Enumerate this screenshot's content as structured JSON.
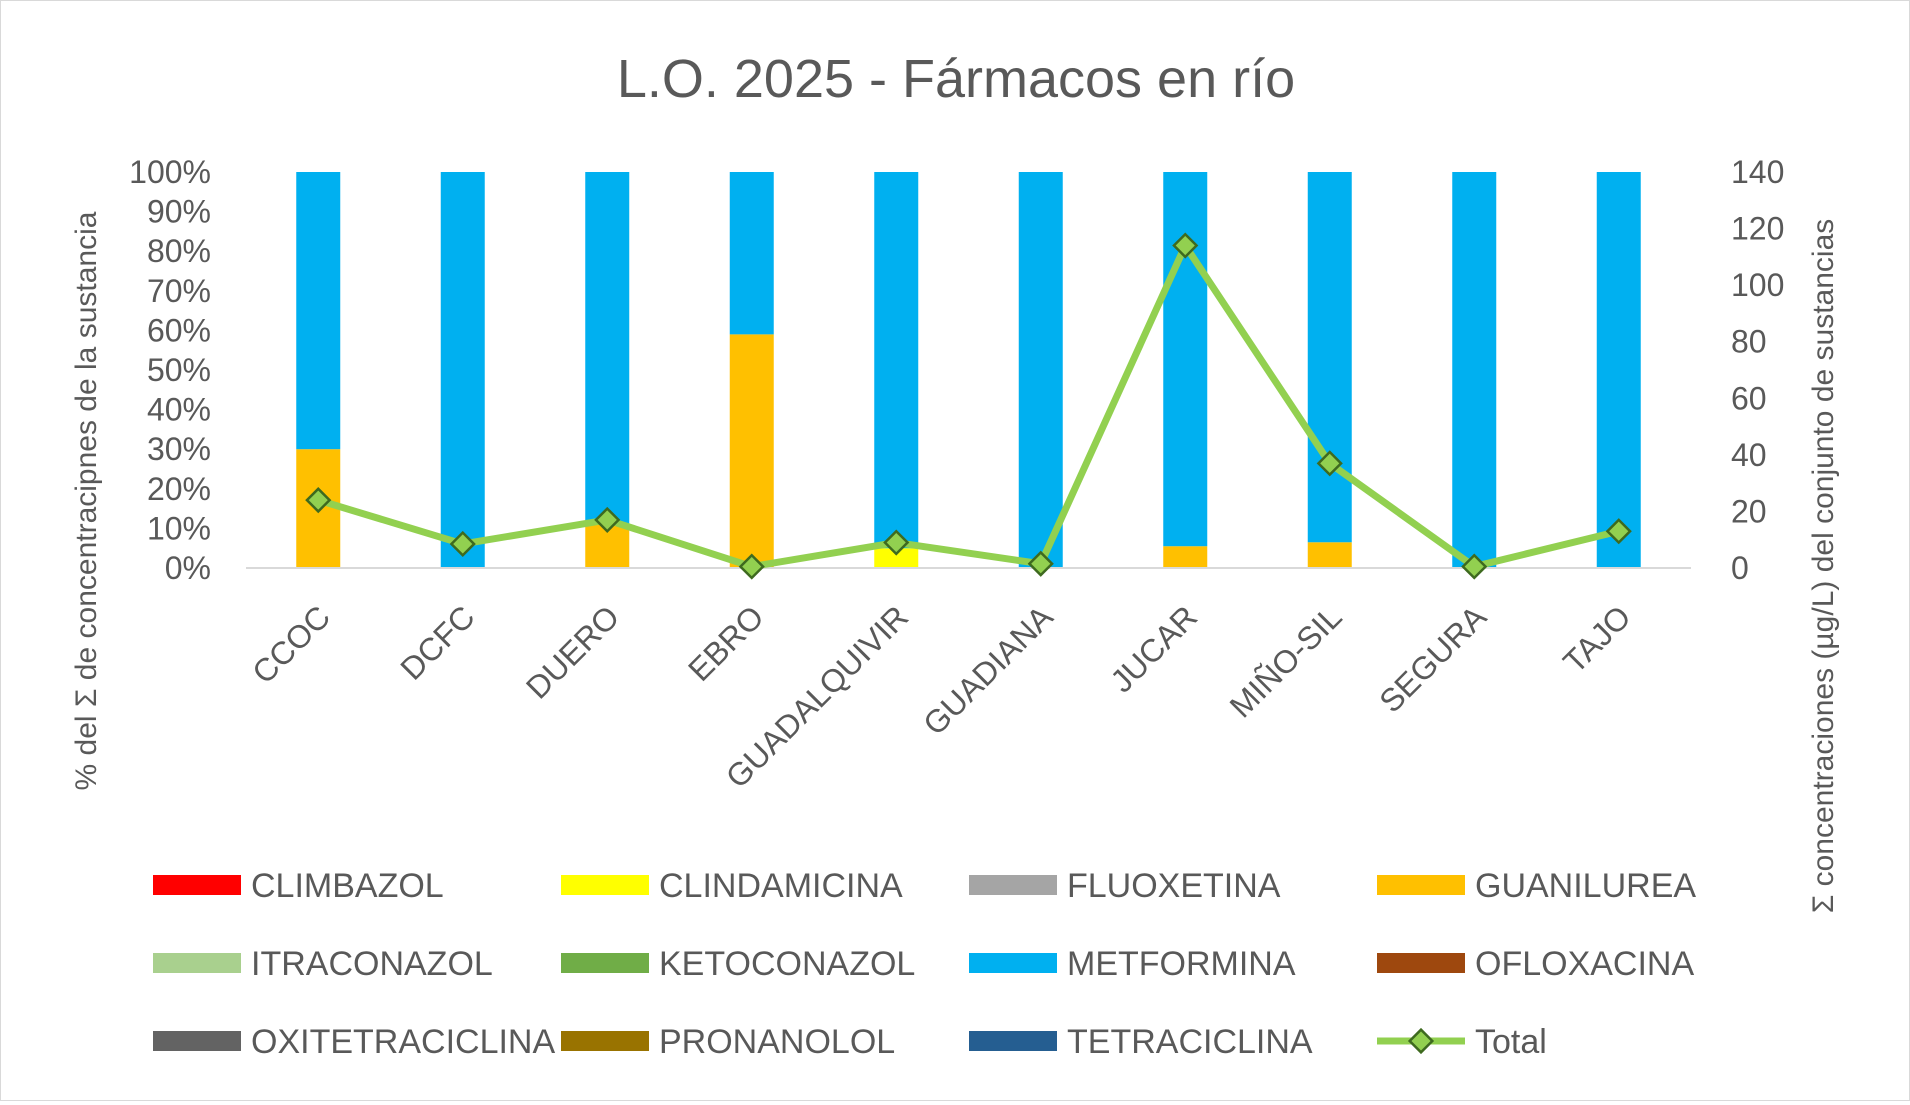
{
  "chart_data": {
    "type": "bar",
    "subtype": "stacked-percent-with-line",
    "title": "L.O. 2025 - Fármacos en río",
    "ylabel": "% del Σ de concentracipnes de la sustancia",
    "y2label": "Σ concentraciones (µg/L) del conjunto de sustancias",
    "ylim": [
      0,
      100
    ],
    "y2lim": [
      0,
      140
    ],
    "yticks": [
      "0%",
      "10%",
      "20%",
      "30%",
      "40%",
      "50%",
      "60%",
      "70%",
      "80%",
      "90%",
      "100%"
    ],
    "y2ticks": [
      "0",
      "20",
      "40",
      "60",
      "80",
      "100",
      "120",
      "140"
    ],
    "categories": [
      "CCOC",
      "DCFC",
      "DUERO",
      "EBRO",
      "GUADALQUIVIR",
      "GUADIANA",
      "JUCAR",
      "MIÑO-SIL",
      "SEGURA",
      "TAJO"
    ],
    "series": [
      {
        "name": "CLIMBAZOL",
        "color": "#FF0000",
        "values": [
          0,
          0,
          0,
          0,
          0,
          0,
          0,
          0,
          0,
          0
        ]
      },
      {
        "name": "CLINDAMICINA",
        "color": "#FFFF00",
        "values": [
          0,
          0,
          0,
          0,
          5,
          0,
          0,
          0,
          0,
          0
        ]
      },
      {
        "name": "FLUOXETINA",
        "color": "#A5A5A5",
        "values": [
          0,
          0,
          0,
          0,
          0,
          0,
          0,
          0,
          0,
          0
        ]
      },
      {
        "name": "GUANILUREA",
        "color": "#FFC000",
        "values": [
          30,
          0,
          11,
          59,
          0,
          0,
          5.5,
          6.5,
          0,
          0
        ]
      },
      {
        "name": "ITRACONAZOL",
        "color": "#A9D08E",
        "values": [
          0,
          0,
          0,
          0,
          0,
          0,
          0,
          0,
          0,
          0
        ]
      },
      {
        "name": "KETOCONAZOL",
        "color": "#70AD47",
        "values": [
          0,
          0,
          0,
          0,
          0,
          0,
          0,
          0,
          0,
          0
        ]
      },
      {
        "name": "METFORMINA",
        "color": "#00B0F0",
        "values": [
          70,
          100,
          89,
          41,
          95,
          100,
          94.5,
          93.5,
          100,
          100
        ]
      },
      {
        "name": "OFLOXACINA",
        "color": "#9E480E",
        "values": [
          0,
          0,
          0,
          0,
          0,
          0,
          0,
          0,
          0,
          0
        ]
      },
      {
        "name": "OXITETRACICLINA",
        "color": "#636363",
        "values": [
          0,
          0,
          0,
          0,
          0,
          0,
          0,
          0,
          0,
          0
        ]
      },
      {
        "name": "PRONANOLOL",
        "color": "#997300",
        "values": [
          0,
          0,
          0,
          0,
          0,
          0,
          0,
          0,
          0,
          0
        ]
      },
      {
        "name": "TETRACICLINA",
        "color": "#255E91",
        "values": [
          0,
          0,
          0,
          0,
          0,
          0,
          0,
          0,
          0,
          0
        ]
      }
    ],
    "line_series": {
      "name": "Total",
      "color": "#92D050",
      "marker_color": "#70AD47",
      "axis": "secondary",
      "values": [
        24,
        8.5,
        17,
        0.5,
        9,
        1.5,
        114,
        37,
        0.5,
        13
      ]
    },
    "legend": "bottom",
    "grid": false
  }
}
